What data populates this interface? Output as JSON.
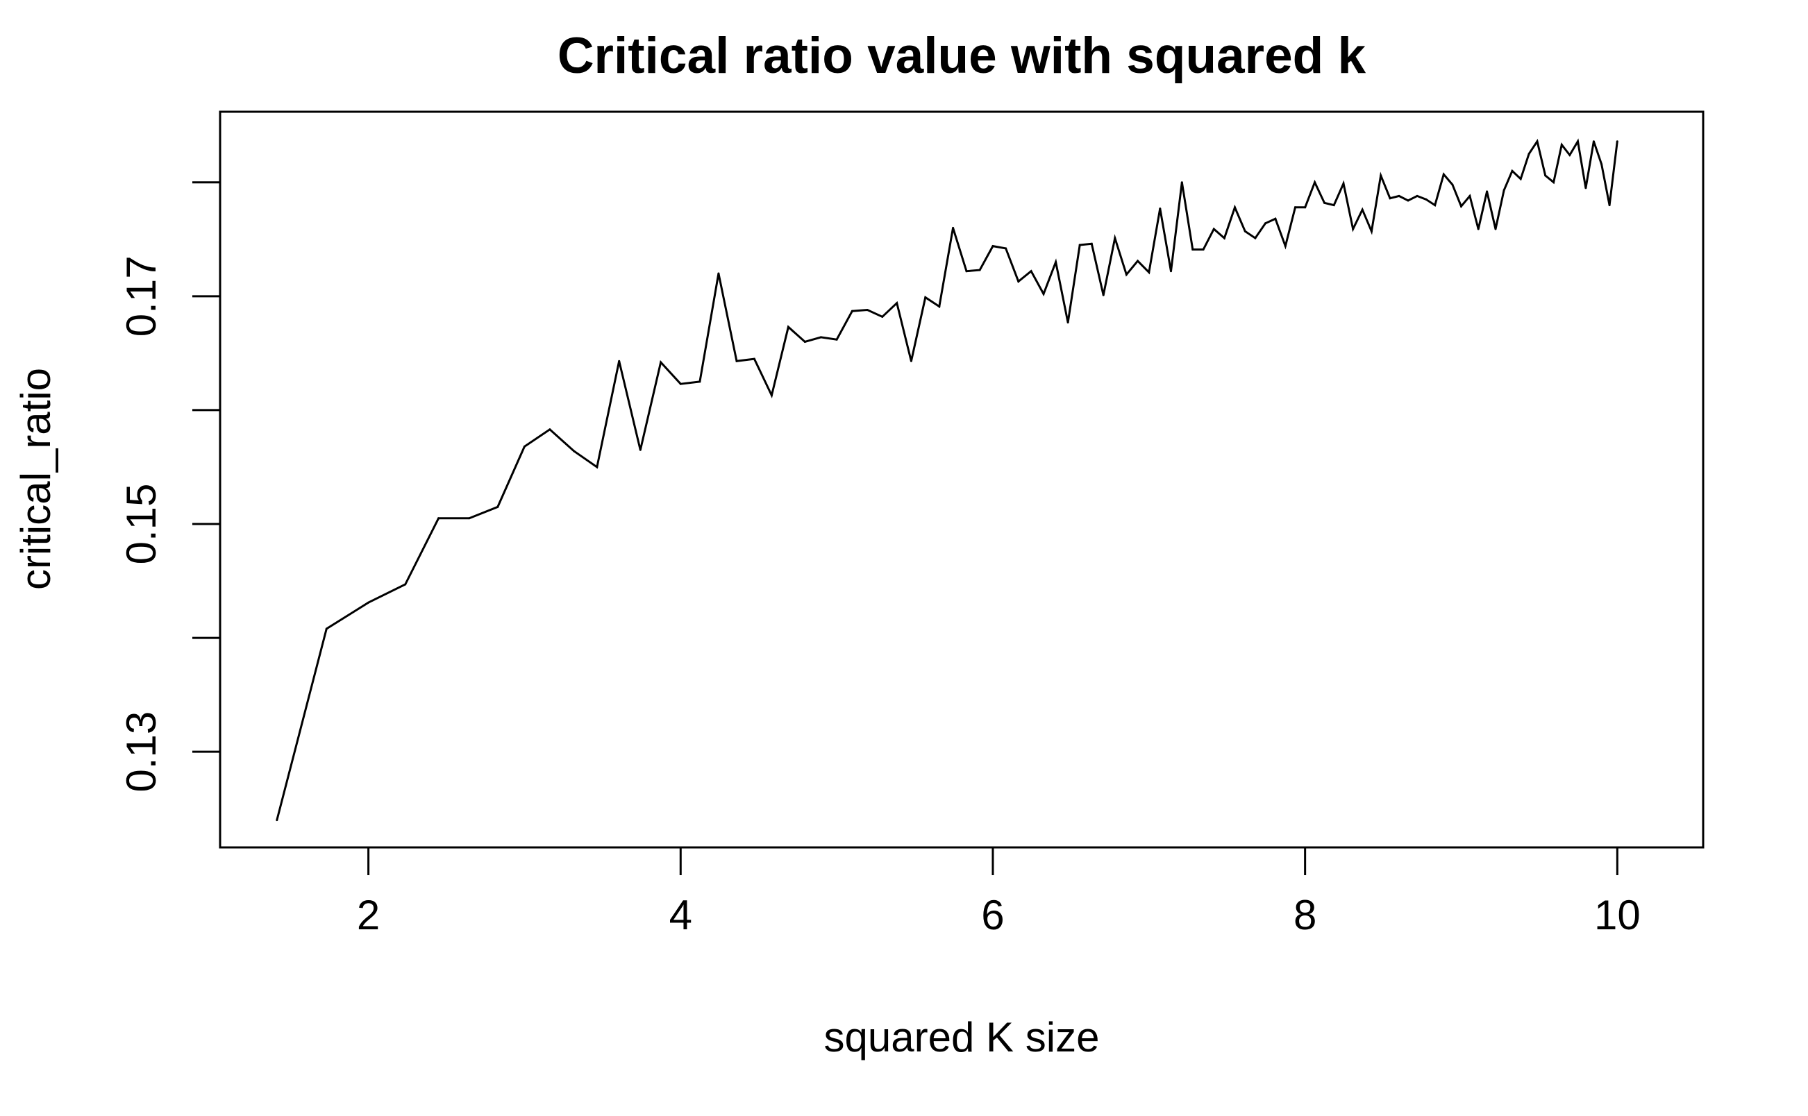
{
  "chart_data": {
    "type": "line",
    "title": "Critical ratio value with squared k",
    "xlabel": "squared K size",
    "ylabel": "critical_ratio",
    "xlim": [
      1.05,
      10.55
    ],
    "ylim": [
      0.1216,
      0.1862
    ],
    "x_ticks": [
      2,
      4,
      6,
      8,
      10
    ],
    "x_tick_labels": [
      "2",
      "4",
      "6",
      "8",
      "10"
    ],
    "y_ticks": [
      0.13,
      0.14,
      0.15,
      0.16,
      0.17,
      0.18
    ],
    "y_tick_labels": [
      "0.13",
      "",
      "0.15",
      "",
      "0.17",
      ""
    ],
    "grid": false,
    "legend": "none",
    "line_color": "#000000",
    "series": [
      {
        "x": [
          1.414,
          1.732,
          2.0,
          2.236,
          2.449,
          2.646,
          2.828,
          3.0,
          3.162,
          3.317,
          3.464,
          3.606,
          3.742,
          3.873,
          4.0,
          4.123,
          4.243,
          4.359,
          4.472,
          4.583,
          4.69,
          4.796,
          4.899,
          5.0,
          5.099,
          5.196,
          5.292,
          5.385,
          5.477,
          5.568,
          5.657,
          5.745,
          5.831,
          5.916,
          6.0,
          6.083,
          6.164,
          6.245,
          6.325,
          6.403,
          6.481,
          6.557,
          6.633,
          6.708,
          6.782,
          6.856,
          6.928,
          7.0,
          7.071,
          7.141,
          7.211,
          7.28,
          7.348,
          7.416,
          7.483,
          7.55,
          7.616,
          7.681,
          7.746,
          7.81,
          7.874,
          7.937,
          8.0,
          8.062,
          8.124,
          8.185,
          8.246,
          8.307,
          8.367,
          8.426,
          8.485,
          8.544,
          8.602,
          8.66,
          8.718,
          8.775,
          8.832,
          8.888,
          8.944,
          9.0,
          9.055,
          9.11,
          9.165,
          9.22,
          9.274,
          9.327,
          9.381,
          9.434,
          9.487,
          9.539,
          9.592,
          9.644,
          9.695,
          9.747,
          9.798,
          9.849,
          9.899,
          9.95,
          10.0
        ],
        "values": [
          0.124,
          0.1408,
          0.1431,
          0.1447,
          0.1505,
          0.1505,
          0.1515,
          0.1568,
          0.1583,
          0.1564,
          0.155,
          0.1643,
          0.1565,
          0.1642,
          0.1623,
          0.1625,
          0.172,
          0.1643,
          0.1645,
          0.1613,
          0.1673,
          0.166,
          0.1664,
          0.1662,
          0.1687,
          0.1688,
          0.1682,
          0.1694,
          0.1643,
          0.1699,
          0.1691,
          0.176,
          0.1722,
          0.1723,
          0.1744,
          0.1742,
          0.1713,
          0.1722,
          0.1702,
          0.173,
          0.1677,
          0.1745,
          0.1746,
          0.1701,
          0.1751,
          0.1719,
          0.1731,
          0.1721,
          0.1777,
          0.1722,
          0.18,
          0.1741,
          0.1741,
          0.1759,
          0.1751,
          0.1778,
          0.1757,
          0.1751,
          0.1764,
          0.1768,
          0.1744,
          0.1778,
          0.1778,
          0.18,
          0.1782,
          0.178,
          0.1799,
          0.1759,
          0.1776,
          0.1757,
          0.1806,
          0.1786,
          0.1788,
          0.1784,
          0.1788,
          0.1785,
          0.178,
          0.1807,
          0.1798,
          0.1779,
          0.1788,
          0.1759,
          0.1792,
          0.1759,
          0.1793,
          0.181,
          0.1803,
          0.1825,
          0.1836,
          0.1806,
          0.18,
          0.1833,
          0.1824,
          0.1836,
          0.1795,
          0.1836,
          0.1816,
          0.178,
          0.1836
        ]
      }
    ]
  }
}
